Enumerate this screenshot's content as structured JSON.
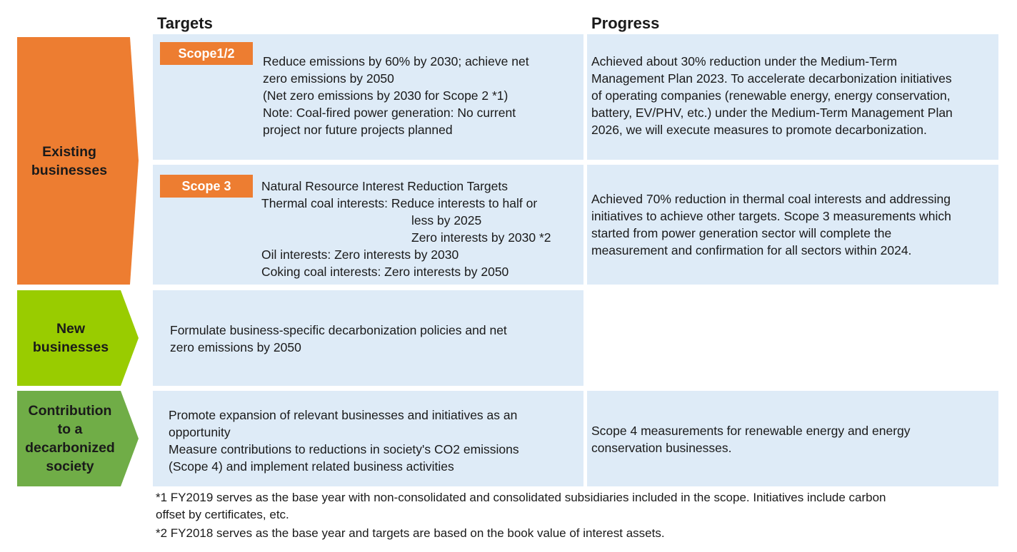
{
  "headers": {
    "targets": "Targets",
    "progress": "Progress"
  },
  "categories": {
    "existing": {
      "line1": "Existing",
      "line2": "businesses",
      "color": "#ed7d31"
    },
    "new": {
      "line1": "New",
      "line2": "businesses",
      "color": "#99cc00"
    },
    "contribution": {
      "line1": "Contribution",
      "line2": "to a",
      "line3": "decarbonized",
      "line4": "society",
      "color": "#70ad47"
    }
  },
  "scope12": {
    "badge": "Scope1/2",
    "target_lines": [
      "Reduce emissions by 60% by 2030; achieve net",
      "zero emissions by 2050",
      "(Net zero emissions by 2030 for Scope 2 *1)",
      "Note: Coal-fired power generation: No current",
      "project nor future projects planned"
    ],
    "progress_lines": [
      "Achieved about 30% reduction under the Medium-Term",
      "Management Plan 2023. To accelerate decarbonization initiatives",
      "of operating companies (renewable energy, energy conservation,",
      "battery, EV/PHV, etc.) under the Medium-Term Management Plan",
      "2026, we will execute measures to promote decarbonization."
    ]
  },
  "scope3": {
    "badge": "Scope 3",
    "target_lines": [
      "Natural Resource Interest Reduction Targets",
      "Thermal coal interests: Reduce interests to half or",
      "less by 2025",
      "Zero interests by 2030 *2",
      "Oil interests: Zero interests by 2030",
      "Coking coal interests: Zero interests by 2050"
    ],
    "progress_lines": [
      "Achieved 70% reduction in thermal coal interests and addressing",
      "initiatives to achieve other targets. Scope 3 measurements which",
      "started from power generation sector will complete the",
      "measurement and confirmation for all sectors within 2024."
    ]
  },
  "new_business": {
    "target_lines": [
      "Formulate business-specific decarbonization policies and net",
      "zero emissions by 2050"
    ]
  },
  "contribution": {
    "target_lines": [
      "Promote expansion of relevant businesses and initiatives as an",
      "opportunity",
      "Measure contributions to reductions in society's CO2 emissions",
      "(Scope 4) and implement related business activities"
    ],
    "progress_lines": [
      "Scope 4 measurements for renewable energy and energy",
      "conservation businesses."
    ]
  },
  "footnotes": {
    "note1_line1": "*1 FY2019 serves as the base year with non-consolidated and consolidated subsidiaries included in the scope. Initiatives include carbon",
    "note1_line2": "offset by certificates, etc.",
    "note2": "*2 FY2018 serves as the base year and targets are based on the book value of interest assets."
  },
  "colors": {
    "cell_bg": "#deebf7",
    "badge": "#ed7d31"
  }
}
